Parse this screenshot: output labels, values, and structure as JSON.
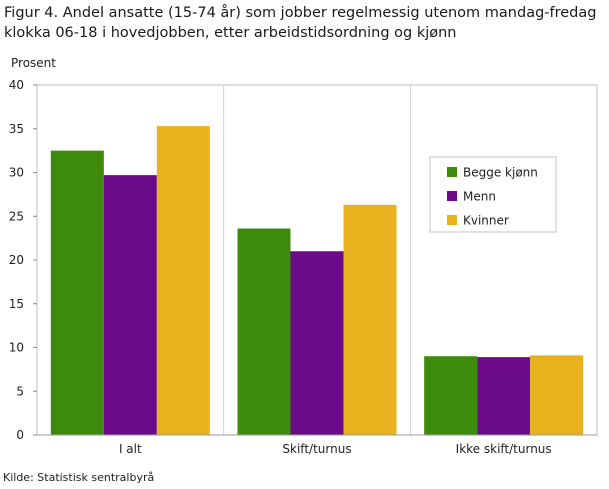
{
  "header": {
    "title_line1": "Figur 4. Andel ansatte (15-74 år) som jobber regelmessig utenom mandag-fredag",
    "title_line2": "klokka 06-18 i hovedjobben, etter arbeidstidsordning og kjønn"
  },
  "footer": {
    "source": "Kilde: Statistisk sentralbyrå"
  },
  "chart_data": {
    "type": "bar",
    "title": "Figur 4. Andel ansatte (15-74 år) som jobber regelmessig utenom mandag-fredag klokka 06-18 i hovedjobben, etter arbeidstidsordning og kjønn",
    "ylabel": "Prosent",
    "xlabel": "",
    "ylim": [
      0,
      40
    ],
    "yticks": [
      0,
      5,
      10,
      15,
      20,
      25,
      30,
      35,
      40
    ],
    "categories": [
      "I alt",
      "Skift/turnus",
      "Ikke skift/turnus"
    ],
    "series": [
      {
        "name": "Begge kjønn",
        "color": "#3e8a0c",
        "values": [
          32.5,
          23.6,
          9.0
        ]
      },
      {
        "name": "Menn",
        "color": "#6c0b8a",
        "values": [
          29.7,
          21.0,
          8.9
        ]
      },
      {
        "name": "Kvinner",
        "color": "#e8b21e",
        "values": [
          35.3,
          26.3,
          9.1
        ]
      }
    ],
    "grid": "vertical separators between categories",
    "legend_position": "right"
  }
}
